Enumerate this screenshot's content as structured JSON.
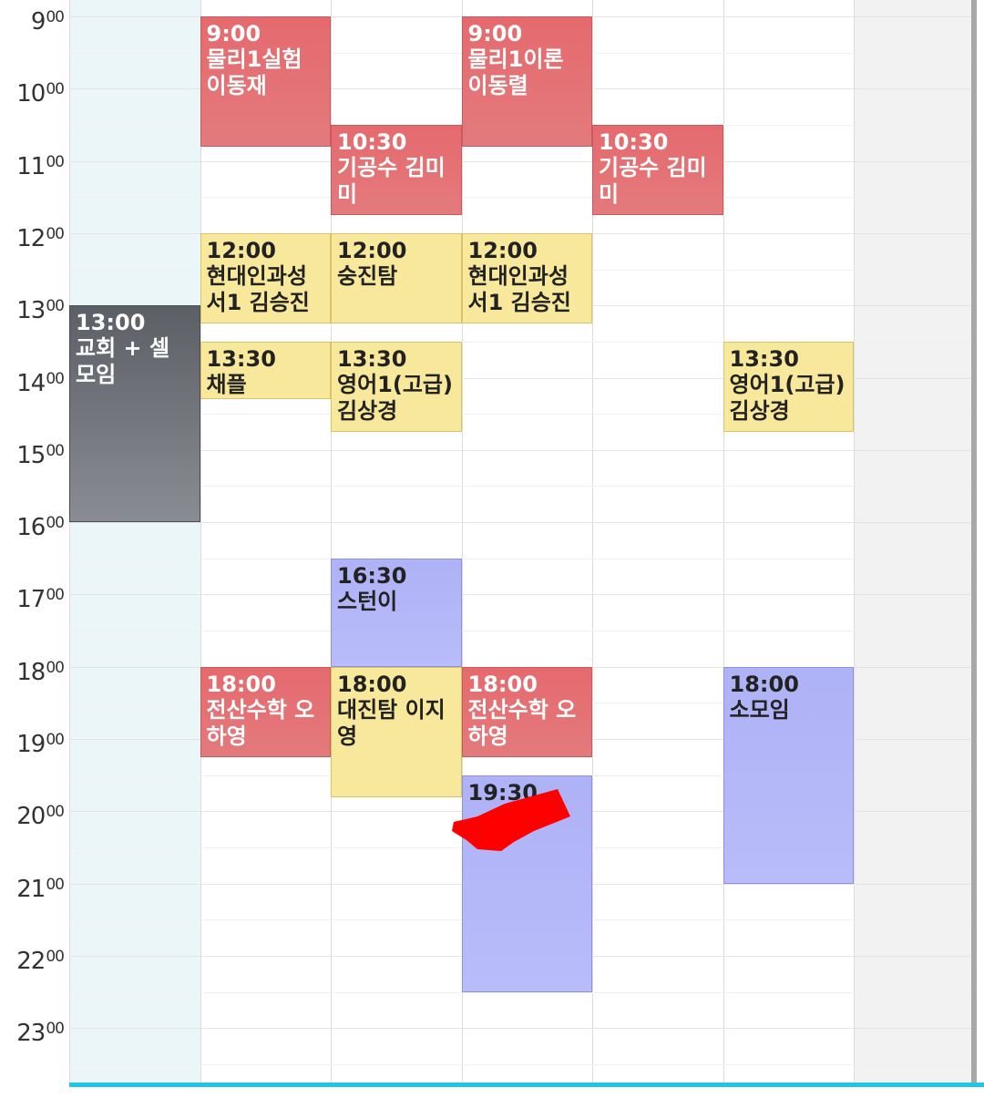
{
  "hours": [
    {
      "h": "9",
      "m": "00"
    },
    {
      "h": "10",
      "m": "00"
    },
    {
      "h": "11",
      "m": "00"
    },
    {
      "h": "12",
      "m": "00"
    },
    {
      "h": "13",
      "m": "00"
    },
    {
      "h": "14",
      "m": "00"
    },
    {
      "h": "15",
      "m": "00"
    },
    {
      "h": "16",
      "m": "00"
    },
    {
      "h": "17",
      "m": "00"
    },
    {
      "h": "18",
      "m": "00"
    },
    {
      "h": "19",
      "m": "00"
    },
    {
      "h": "20",
      "m": "00"
    },
    {
      "h": "21",
      "m": "00"
    },
    {
      "h": "22",
      "m": "00"
    },
    {
      "h": "23",
      "m": "00"
    }
  ],
  "days": [
    {
      "bg": "#eaf6f8"
    },
    {
      "bg": "#ffffff"
    },
    {
      "bg": "#ffffff"
    },
    {
      "bg": "#ffffff"
    },
    {
      "bg": "#ffffff"
    },
    {
      "bg": "#ffffff"
    },
    {
      "bg": "#f2f2f2"
    }
  ],
  "events": [
    {
      "day": 0,
      "start": 13.0,
      "end": 16.0,
      "time": "13:00",
      "title": "교회 + 셀 모임",
      "color": "gray"
    },
    {
      "day": 1,
      "start": 9.0,
      "end": 10.8,
      "time": "9:00",
      "title": "물리1실험 이동재",
      "color": "red"
    },
    {
      "day": 1,
      "start": 12.0,
      "end": 13.25,
      "time": "12:00",
      "title": "현대인과성서1 김승진",
      "color": "yellow"
    },
    {
      "day": 1,
      "start": 13.5,
      "end": 14.3,
      "time": "13:30",
      "title": "채플",
      "color": "yellow"
    },
    {
      "day": 1,
      "start": 18.0,
      "end": 19.25,
      "time": "18:00",
      "title": "전산수학 오하영",
      "color": "red"
    },
    {
      "day": 2,
      "start": 10.5,
      "end": 11.75,
      "time": "10:30",
      "title": "기공수 김미미",
      "color": "red"
    },
    {
      "day": 2,
      "start": 12.0,
      "end": 13.25,
      "time": "12:00",
      "title": "숭진탐",
      "color": "yellow"
    },
    {
      "day": 2,
      "start": 13.5,
      "end": 14.75,
      "time": "13:30",
      "title": "영어1(고급) 김상경",
      "color": "yellow"
    },
    {
      "day": 2,
      "start": 16.5,
      "end": 18.0,
      "time": "16:30",
      "title": "스턴이",
      "color": "blue"
    },
    {
      "day": 2,
      "start": 18.0,
      "end": 19.8,
      "time": "18:00",
      "title": "대진탐 이지영",
      "color": "yellow"
    },
    {
      "day": 3,
      "start": 9.0,
      "end": 10.8,
      "time": "9:00",
      "title": "물리1이론 이동렬",
      "color": "red"
    },
    {
      "day": 3,
      "start": 12.0,
      "end": 13.25,
      "time": "12:00",
      "title": "현대인과성서1 김승진",
      "color": "yellow"
    },
    {
      "day": 3,
      "start": 18.0,
      "end": 19.25,
      "time": "18:00",
      "title": "전산수학 오하영",
      "color": "red"
    },
    {
      "day": 3,
      "start": 19.5,
      "end": 22.5,
      "time": "19:30",
      "title": "",
      "color": "blue"
    },
    {
      "day": 4,
      "start": 10.5,
      "end": 11.75,
      "time": "10:30",
      "title": "기공수 김미미",
      "color": "red"
    },
    {
      "day": 5,
      "start": 13.5,
      "end": 14.75,
      "time": "13:30",
      "title": "영어1(고급) 김상경",
      "color": "yellow"
    },
    {
      "day": 5,
      "start": 18.0,
      "end": 21.0,
      "time": "18:00",
      "title": "소모임",
      "color": "blue"
    }
  ],
  "colors": {
    "accent": "#22c4e8",
    "red": "#e56a6e",
    "yellow": "#f8e89c",
    "blue": "#b4b8f8",
    "gray": "#6a6c73",
    "scribble": "#ff0000"
  }
}
